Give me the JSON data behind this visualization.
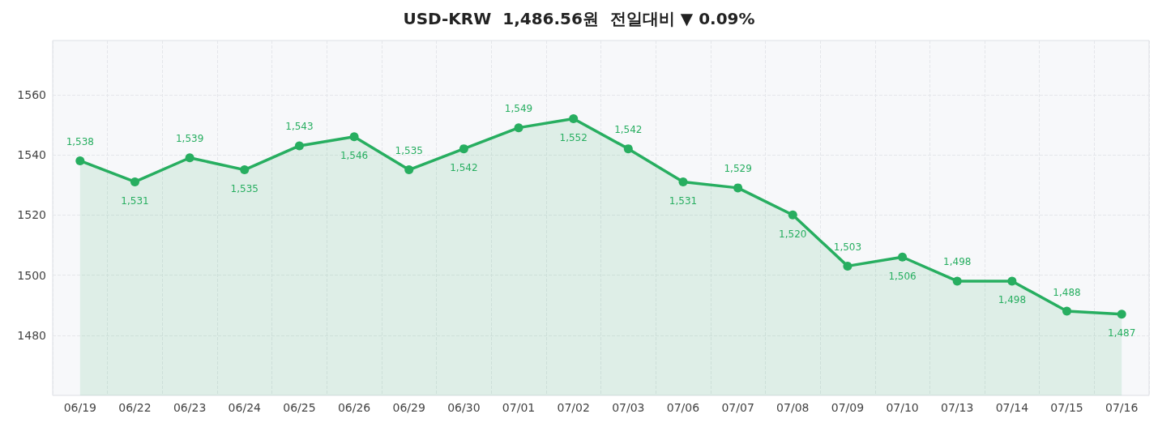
{
  "chart_data": {
    "type": "area",
    "title": "USD-KRW  1,486.56원  전일대비 ▼ 0.09%",
    "categories": [
      "06/19",
      "06/22",
      "06/23",
      "06/24",
      "06/25",
      "06/26",
      "06/29",
      "06/30",
      "07/01",
      "07/02",
      "07/03",
      "07/06",
      "07/07",
      "07/08",
      "07/09",
      "07/10",
      "07/13",
      "07/14",
      "07/15",
      "07/16"
    ],
    "series": [
      {
        "color": "#27ae60",
        "values": [
          1538,
          1531,
          1539,
          1535,
          1543,
          1546,
          1535,
          1542,
          1549,
          1552,
          1542,
          1531,
          1529,
          1520,
          1503,
          1506,
          1498,
          1498,
          1488,
          1487
        ],
        "value_labels": [
          "1,538",
          "1,531",
          "1,539",
          "1,535",
          "1,543",
          "1,546",
          "1,535",
          "1,542",
          "1,549",
          "1,552",
          "1,542",
          "1,531",
          "1,529",
          "1,520",
          "1,503",
          "1,506",
          "1,498",
          "1,498",
          "1,488",
          "1,487"
        ]
      }
    ],
    "ylim": [
      1460,
      1578
    ],
    "yticks": [
      1480,
      1500,
      1520,
      1540,
      1560
    ],
    "grid": true,
    "marker": "circle",
    "line_style": "solid"
  }
}
